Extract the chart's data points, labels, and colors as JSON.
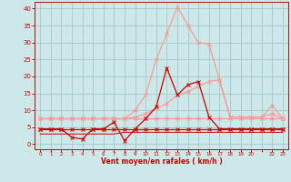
{
  "background_color": "#cce8e8",
  "grid_color": "#aacccc",
  "line_color_dark": "#cc0000",
  "line_color_light": "#ff9999",
  "xlabel_text": "Vent moyen/en rafales ( km/h )",
  "ylim": [
    -1.5,
    42
  ],
  "yticks": [
    0,
    5,
    10,
    15,
    20,
    25,
    30,
    35,
    40
  ],
  "x_positions": [
    0,
    1,
    2,
    3,
    4,
    5,
    6,
    7,
    8,
    9,
    10,
    11,
    12,
    13,
    14,
    15,
    16,
    17,
    18,
    19,
    20,
    21,
    22,
    23
  ],
  "x_tick_labels": [
    "0",
    "1",
    "2",
    "3",
    "4",
    "5",
    "6",
    "7",
    "8",
    "9",
    "10",
    "11",
    "12",
    "13",
    "14",
    "15",
    "16",
    "17",
    "18",
    "19",
    "20",
    "",
    "22",
    "23"
  ],
  "series_rafales": [
    7.5,
    7.5,
    7.5,
    7.5,
    7.5,
    7.5,
    7.5,
    7.5,
    7.5,
    10.0,
    14.5,
    25.0,
    32.5,
    40.5,
    35.0,
    30.0,
    29.5,
    19.0,
    8.0,
    8.0,
    8.0,
    8.0,
    11.5,
    7.5
  ],
  "series_moyen": [
    4.5,
    4.5,
    4.5,
    2.0,
    1.5,
    4.5,
    4.5,
    6.5,
    1.0,
    4.5,
    7.5,
    11.0,
    22.5,
    14.5,
    17.5,
    18.5,
    8.0,
    4.5,
    4.5,
    4.5,
    4.5,
    4.5,
    4.5,
    4.5
  ],
  "series_grad_light": [
    7.5,
    7.5,
    7.5,
    7.5,
    7.5,
    7.5,
    7.5,
    7.5,
    7.5,
    8.0,
    9.0,
    10.5,
    12.0,
    14.5,
    15.5,
    17.0,
    18.5,
    19.0,
    8.0,
    8.0,
    8.0,
    8.0,
    9.0,
    7.5
  ],
  "series_flat_light": [
    7.5,
    7.5,
    7.5,
    7.5,
    7.5,
    7.5,
    7.5,
    7.5,
    7.5,
    7.5,
    7.5,
    7.5,
    7.5,
    7.5,
    7.5,
    7.5,
    7.5,
    7.5,
    7.5,
    7.5,
    7.5,
    7.5,
    7.5,
    7.5
  ],
  "series_flat_dark": [
    4.5,
    4.5,
    4.5,
    4.5,
    4.5,
    4.5,
    4.5,
    4.5,
    4.5,
    4.5,
    4.5,
    4.5,
    4.5,
    4.5,
    4.5,
    4.5,
    4.5,
    4.5,
    4.5,
    4.5,
    4.5,
    4.5,
    4.5,
    4.5
  ],
  "series_low_dark": [
    3.0,
    3.0,
    3.0,
    3.0,
    3.0,
    3.0,
    3.0,
    3.0,
    3.5,
    3.5,
    3.5,
    3.5,
    3.5,
    3.5,
    3.5,
    3.5,
    3.5,
    3.5,
    3.5,
    3.5,
    3.5,
    3.5,
    3.5,
    3.5
  ]
}
